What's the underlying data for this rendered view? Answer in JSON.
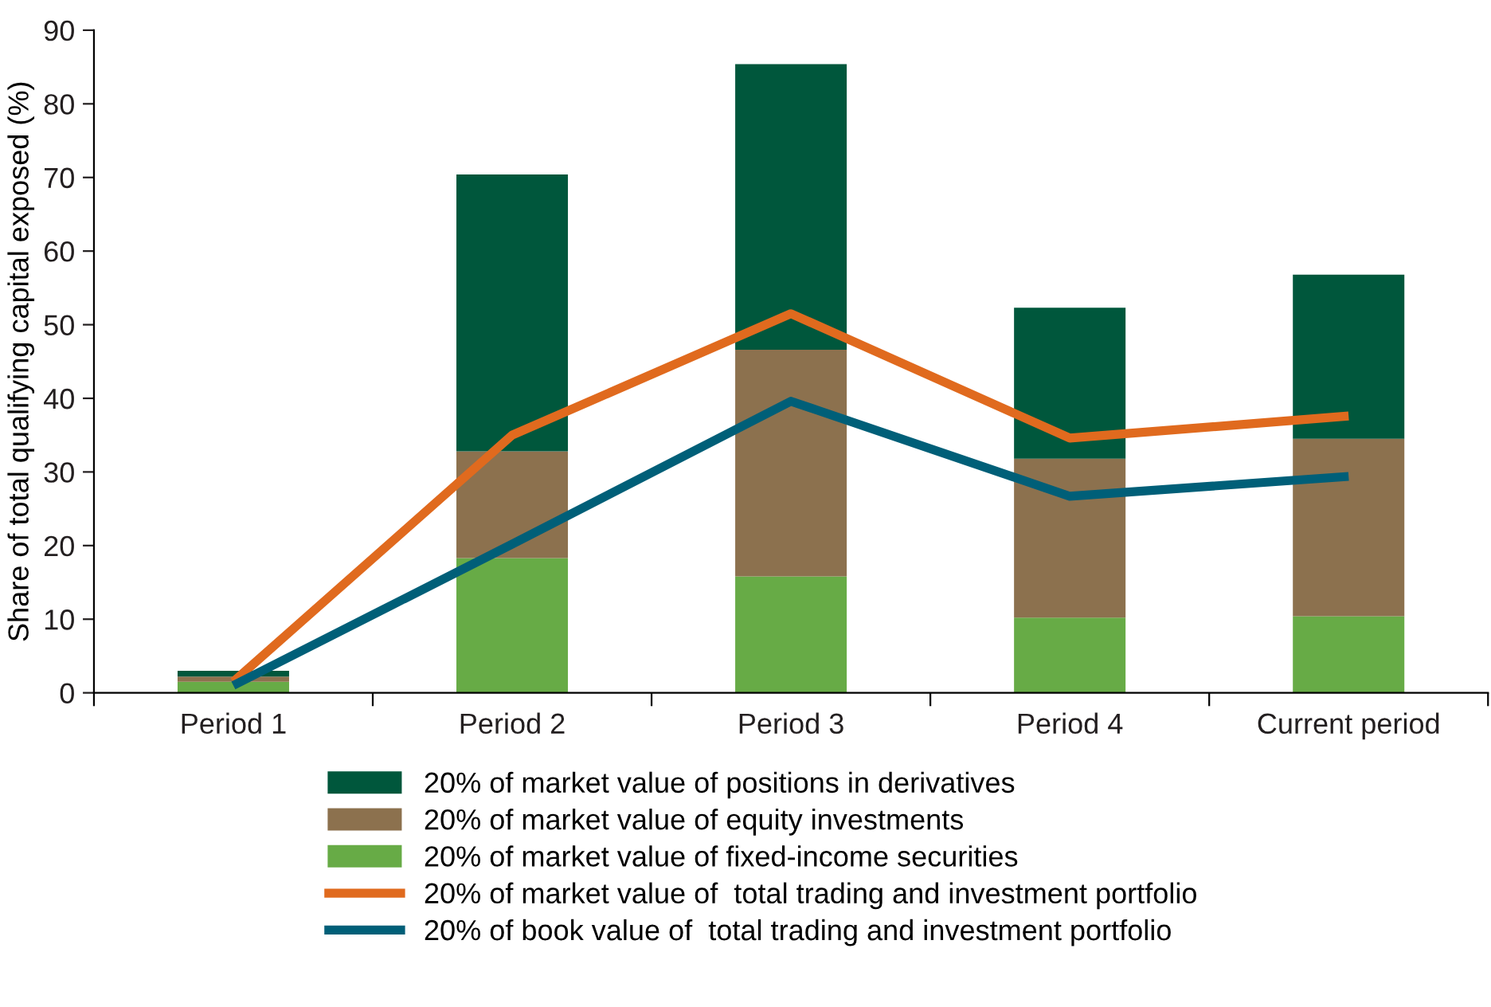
{
  "chart_data": {
    "type": "bar",
    "stacked": true,
    "ylabel": "Share of total qualifying capital exposed (%)",
    "categories": [
      "Period 1",
      "Period 2",
      "Period 3",
      "Period 4",
      "Current period"
    ],
    "ylim": [
      0,
      90
    ],
    "yticks": [
      0,
      10,
      20,
      30,
      40,
      50,
      60,
      70,
      80,
      90
    ],
    "grid": false,
    "legend": "bottom",
    "series": [
      {
        "name": "20% of market value of fixed-income securities",
        "color": "#67ab46",
        "values": [
          1.5,
          18.3,
          15.8,
          10.2,
          10.4
        ]
      },
      {
        "name": "20% of market value of equity investments",
        "color": "#8c714e",
        "values": [
          0.7,
          14.5,
          30.8,
          21.6,
          24.1
        ]
      },
      {
        "name": "20% of market value of positions in derivatives",
        "color": "#00573c",
        "values": [
          0.8,
          37.6,
          38.8,
          20.5,
          22.3
        ]
      },
      {
        "name": "20% of market value of  total trading and investment portfolio",
        "type": "line",
        "color": "#e06a1e",
        "values": [
          1.5,
          35.0,
          51.5,
          34.6,
          37.6
        ]
      },
      {
        "name": "20% of book value of  total trading and investment portfolio",
        "type": "line",
        "color": "#005f78",
        "values": [
          1.0,
          20.2,
          39.6,
          26.7,
          29.4
        ]
      }
    ]
  }
}
